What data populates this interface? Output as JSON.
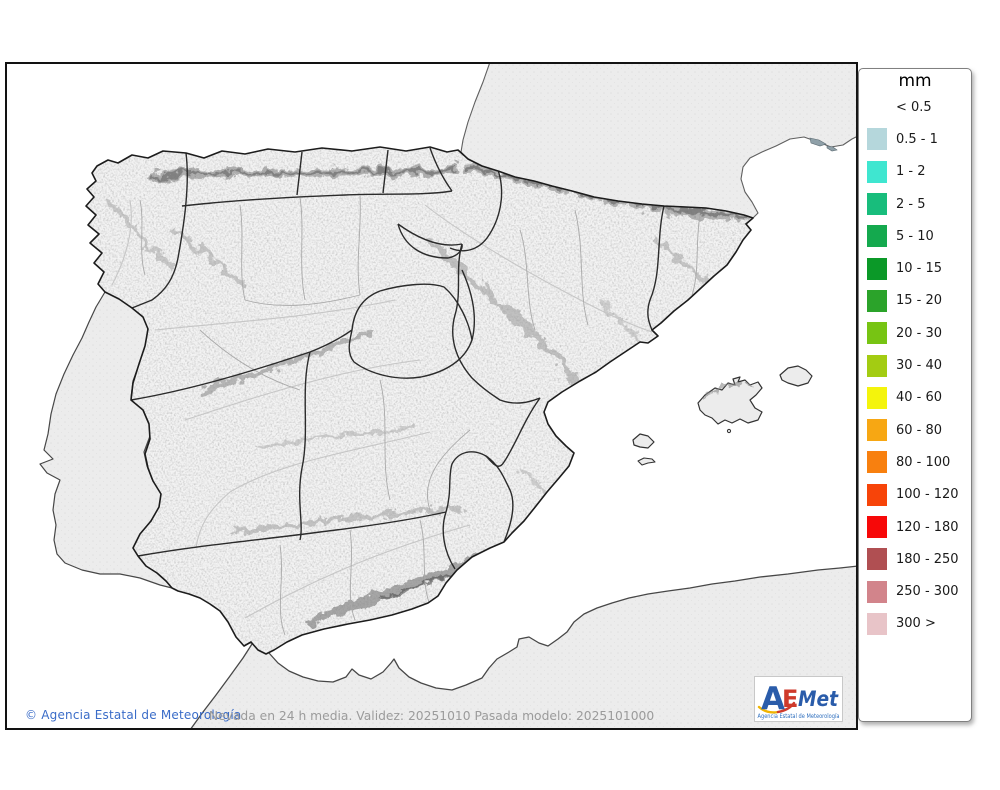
{
  "map": {
    "footer_copyright": "© Agencia Estatal de Meteorología",
    "footer_model": "Nevada en 24 h media. Validez: 20251010 Pasada modelo: 2025101000"
  },
  "legend": {
    "title": "mm",
    "items": [
      {
        "label": "< 0.5",
        "color": null
      },
      {
        "label": "0.5 - 1",
        "color": "#b5d7dc"
      },
      {
        "label": "1 - 2",
        "color": "#3fe6d0"
      },
      {
        "label": "2 - 5",
        "color": "#18bd7c"
      },
      {
        "label": "5 - 10",
        "color": "#14a94e"
      },
      {
        "label": "10 - 15",
        "color": "#0b9928"
      },
      {
        "label": "15 - 20",
        "color": "#2ba32a"
      },
      {
        "label": "20 - 30",
        "color": "#77c413"
      },
      {
        "label": "30 - 40",
        "color": "#a3cc12"
      },
      {
        "label": "40 - 60",
        "color": "#f4f40c"
      },
      {
        "label": "60 - 80",
        "color": "#f7a713"
      },
      {
        "label": "80 - 100",
        "color": "#f8800f"
      },
      {
        "label": "100 - 120",
        "color": "#f74409"
      },
      {
        "label": "120 - 180",
        "color": "#f70808"
      },
      {
        "label": "180 - 250",
        "color": "#b04f52"
      },
      {
        "label": "250 - 300",
        "color": "#d2848b"
      },
      {
        "label": "300 >",
        "color": "#e8c4c8"
      }
    ]
  },
  "logo": {
    "letter_a": "A",
    "letter_e": "E",
    "letter_met": "Met",
    "subtitle": "Agencia Estatal de Meteorología",
    "blue": "#2a5caa",
    "red": "#cf3a2b"
  },
  "colors": {
    "copyright_text": "#3a6cc8",
    "model_text": "#9b9b9b"
  }
}
